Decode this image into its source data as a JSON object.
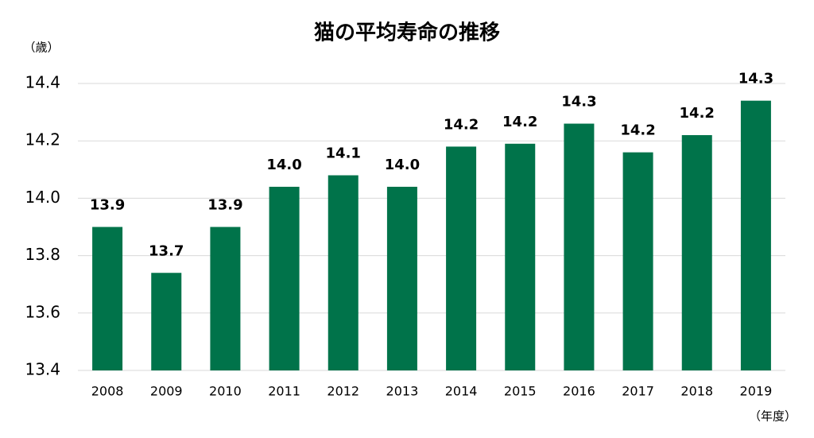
{
  "chart_data": {
    "type": "bar",
    "title": "猫の平均寿命の推移",
    "y_label": "（歳）",
    "x_label": "（年度）",
    "categories": [
      "2008",
      "2009",
      "2010",
      "2011",
      "2012",
      "2013",
      "2014",
      "2015",
      "2016",
      "2017",
      "2018",
      "2019"
    ],
    "values": [
      13.9,
      13.74,
      13.9,
      14.04,
      14.08,
      14.04,
      14.18,
      14.19,
      14.26,
      14.16,
      14.22,
      14.34
    ],
    "value_labels": [
      "13.9",
      "13.7",
      "13.9",
      "14.0",
      "14.1",
      "14.0",
      "14.2",
      "14.2",
      "14.3",
      "14.2",
      "14.2",
      "14.3"
    ],
    "color": "#00734a",
    "ylim": [
      13.4,
      14.4
    ],
    "yticks": [
      13.4,
      13.6,
      13.8,
      {
        "value": 14,
        "label": "14.0"
      },
      14.2,
      14.4
    ],
    "grid": true
  }
}
